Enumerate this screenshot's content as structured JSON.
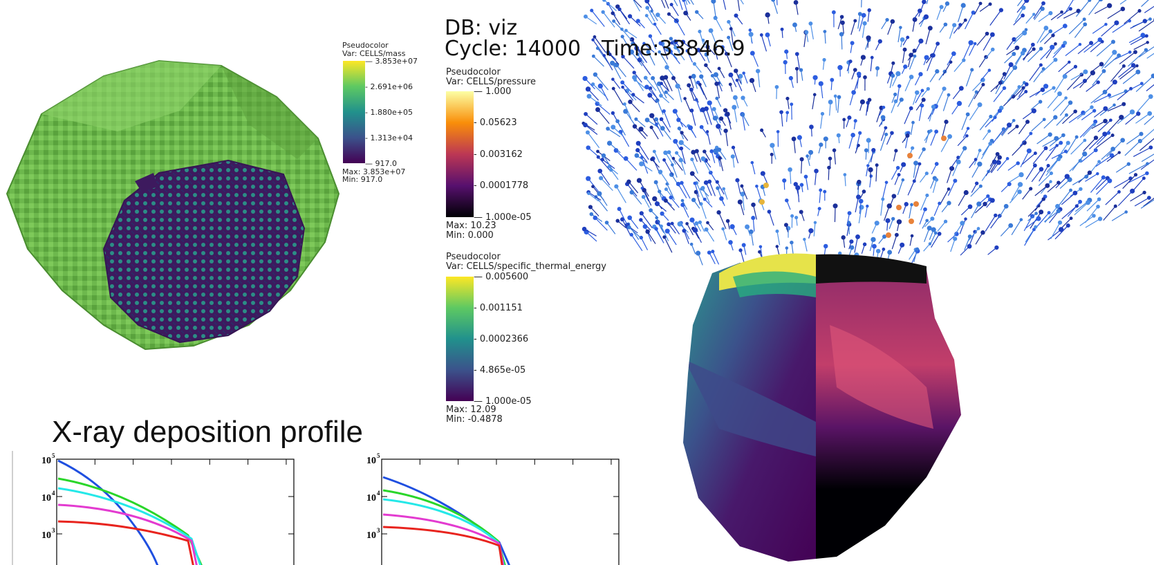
{
  "mass_legend": {
    "plot_type": "Pseudocolor",
    "var": "Var: CELLS/mass",
    "ticks": [
      "3.853e+07",
      "2.691e+06",
      "1.880e+05",
      "1.313e+04",
      "917.0"
    ],
    "max": "Max: 3.853e+07",
    "min": "Min: 917.0",
    "colormap": "viridis"
  },
  "db_info": {
    "db": "DB: viz",
    "cycle": "Cycle: 14000",
    "time": "Time:33846.9"
  },
  "pressure_legend": {
    "plot_type": "Pseudocolor",
    "var": "Var: CELLS/pressure",
    "ticks": [
      "1.000",
      "0.05623",
      "0.003162",
      "0.0001778",
      "1.000e-05"
    ],
    "max": "Max: 10.23",
    "min": "Min: 0.000",
    "colormap": "inferno"
  },
  "energy_legend": {
    "plot_type": "Pseudocolor",
    "var": "Var: CELLS/specific_thermal_energy",
    "ticks": [
      "0.005600",
      "0.001151",
      "0.0002366",
      "4.865e-05",
      "1.000e-05"
    ],
    "max": "Max: 12.09",
    "min": "Min: -0.4878",
    "colormap": "viridis"
  },
  "xray": {
    "title": "X-ray deposition profile",
    "plots": [
      {
        "y_ticks": [
          "10",
          "10",
          "10"
        ],
        "y_exponents": [
          "5",
          "4",
          "3"
        ]
      },
      {
        "y_ticks": [
          "10",
          "10",
          "10"
        ],
        "y_exponents": [
          "5",
          "4",
          "3"
        ]
      }
    ],
    "line_colors": [
      "#1f4fe0",
      "#2ad62a",
      "#25e8e8",
      "#e33bd0",
      "#e8241e"
    ]
  }
}
